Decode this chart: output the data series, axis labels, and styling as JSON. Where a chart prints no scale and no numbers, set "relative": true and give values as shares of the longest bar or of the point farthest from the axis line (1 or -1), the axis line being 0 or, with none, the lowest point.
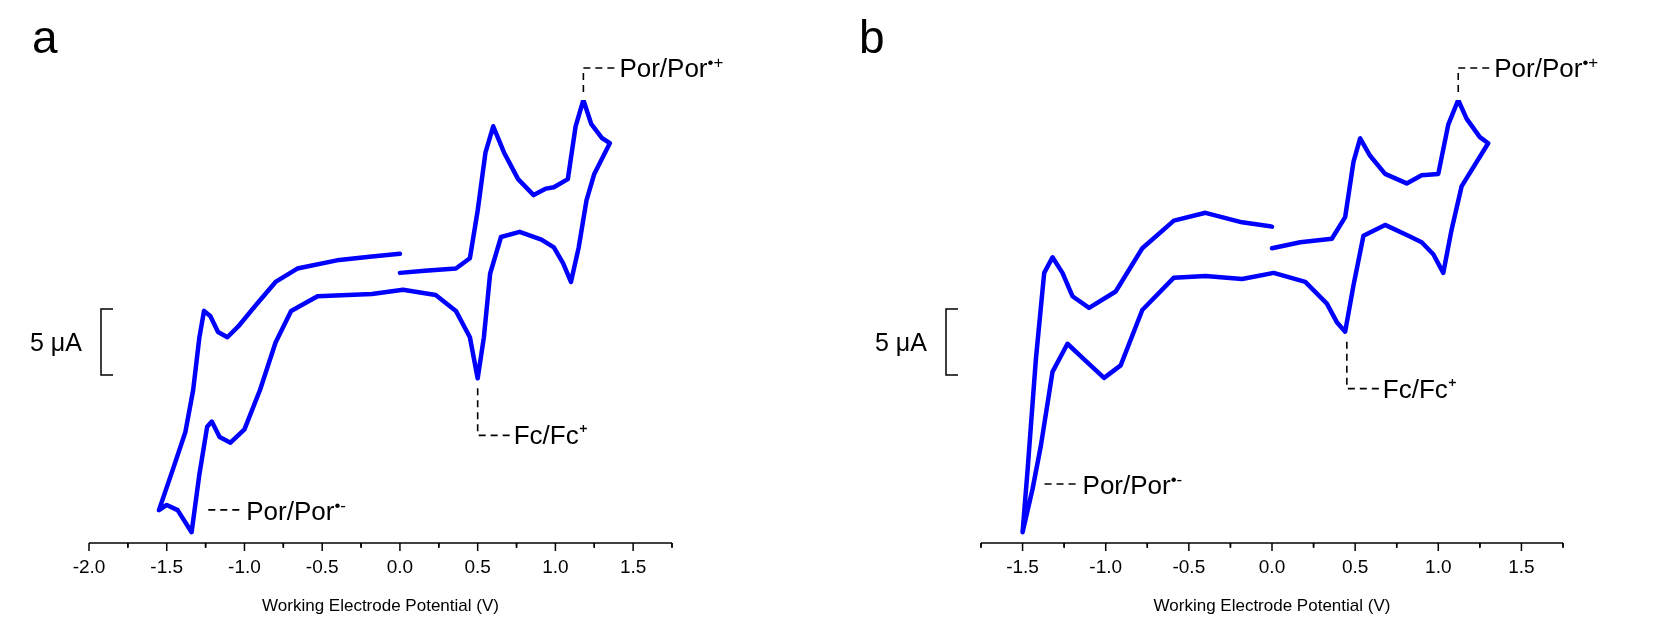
{
  "chart_data": [
    {
      "type": "line",
      "title": "a",
      "xlabel": "Working Electrode Potential (V)",
      "relative": true,
      "xlim": [
        -2.0,
        1.75
      ],
      "xticks": [
        {
          "value": -2,
          "label": "-2.0"
        },
        {
          "value": -1.75,
          "label": null
        },
        {
          "value": -1.5,
          "label": "-1.5"
        },
        {
          "value": -1.25,
          "label": null
        },
        {
          "value": -1,
          "label": "-1.0"
        },
        {
          "value": -0.75,
          "label": null
        },
        {
          "value": -0.5,
          "label": "-0.5"
        },
        {
          "value": -0.25,
          "label": null
        },
        {
          "value": 0,
          "label": "0.0"
        },
        {
          "value": 0.25,
          "label": null
        },
        {
          "value": 0.5,
          "label": "0.5"
        },
        {
          "value": 0.75,
          "label": null
        },
        {
          "value": 1,
          "label": "1.0"
        },
        {
          "value": 1.25,
          "label": null
        },
        {
          "value": 1.5,
          "label": "1.5"
        },
        {
          "value": 1.75,
          "label": null
        }
      ],
      "series": [
        {
          "color": "#0000ff",
          "x": [
            0.0,
            -0.18,
            -0.39,
            -0.66,
            -0.8,
            -0.93,
            -1.04,
            -1.11,
            -1.17,
            -1.22,
            -1.26,
            -1.29,
            -1.33,
            -1.38,
            -1.46,
            -1.55,
            -1.5,
            -1.43,
            -1.34,
            -1.29,
            -1.24,
            -1.21,
            -1.16,
            -1.09,
            -1.0,
            -0.9,
            -0.8,
            -0.7,
            -0.53,
            -0.18,
            0.02,
            0.23,
            0.36,
            0.45,
            0.5,
            0.54,
            0.58,
            0.65,
            0.77,
            0.91,
            0.99,
            1.05,
            1.1,
            1.15,
            1.2,
            1.25,
            1.35,
            1.3,
            1.23,
            1.18,
            1.13,
            1.08,
            0.99,
            0.94,
            0.86,
            0.76,
            0.67,
            0.6,
            0.55,
            0.5,
            0.45,
            0.36,
            0.16,
            0.0
          ],
          "values": [
            0.644,
            0.638,
            0.63,
            0.61,
            0.579,
            0.524,
            0.476,
            0.451,
            0.463,
            0.5,
            0.512,
            0.451,
            0.329,
            0.232,
            0.146,
            0.051,
            0.063,
            0.051,
            0.0,
            0.134,
            0.244,
            0.256,
            0.22,
            0.207,
            0.238,
            0.329,
            0.439,
            0.512,
            0.546,
            0.551,
            0.561,
            0.549,
            0.512,
            0.451,
            0.356,
            0.451,
            0.598,
            0.683,
            0.695,
            0.677,
            0.659,
            0.622,
            0.579,
            0.659,
            0.768,
            0.829,
            0.9,
            0.912,
            0.945,
            1.0,
            0.939,
            0.817,
            0.798,
            0.795,
            0.78,
            0.817,
            0.878,
            0.939,
            0.878,
            0.744,
            0.634,
            0.61,
            0.605,
            0.6
          ]
        }
      ],
      "annotations": [
        "5 μA",
        {
          "text": "Por/Por$^{•+}$",
          "x": 1.18,
          "y": 1.0
        },
        {
          "text": "Fc/Fc⁺",
          "x": 0.5,
          "y": 0.356
        },
        {
          "text": "Por/Por$^{•-}$",
          "x": -1.31,
          "y": 0.04
        }
      ]
    },
    {
      "type": "line",
      "title": "b",
      "xlabel": "Working Electrode Potential (V)",
      "relative": true,
      "xlim": [
        -1.75,
        1.75
      ],
      "xticks": [
        {
          "value": -1.75,
          "label": null
        },
        {
          "value": -1.5,
          "label": "-1.5"
        },
        {
          "value": -1.25,
          "label": null
        },
        {
          "value": -1,
          "label": "-1.0"
        },
        {
          "value": -0.75,
          "label": null
        },
        {
          "value": -0.5,
          "label": "-0.5"
        },
        {
          "value": -0.25,
          "label": null
        },
        {
          "value": 0,
          "label": "0.0"
        },
        {
          "value": 0.25,
          "label": null
        },
        {
          "value": 0.5,
          "label": "0.5"
        },
        {
          "value": 0.75,
          "label": null
        },
        {
          "value": 1,
          "label": "1.0"
        },
        {
          "value": 1.25,
          "label": null
        },
        {
          "value": 1.5,
          "label": "1.5"
        },
        {
          "value": 1.75,
          "label": null
        }
      ],
      "series": [
        {
          "color": "#0000ff",
          "x": [
            0.0,
            -0.18,
            -0.4,
            -0.59,
            -0.78,
            -0.94,
            -1.1,
            -1.2,
            -1.26,
            -1.32,
            -1.37,
            -1.42,
            -1.47,
            -1.5,
            -1.44,
            -1.39,
            -1.32,
            -1.23,
            -1.13,
            -1.01,
            -0.91,
            -0.78,
            -0.59,
            -0.4,
            -0.18,
            0.01,
            0.2,
            0.33,
            0.39,
            0.44,
            0.49,
            0.55,
            0.68,
            0.82,
            0.9,
            0.97,
            1.03,
            1.08,
            1.14,
            1.3,
            1.25,
            1.17,
            1.12,
            1.06,
            1.0,
            0.9,
            0.81,
            0.68,
            0.59,
            0.53,
            0.49,
            0.44,
            0.36,
            0.17,
            0.0
          ],
          "values": [
            0.707,
            0.717,
            0.739,
            0.721,
            0.657,
            0.557,
            0.519,
            0.546,
            0.6,
            0.636,
            0.6,
            0.4,
            0.143,
            0.0,
            0.1,
            0.2,
            0.371,
            0.436,
            0.4,
            0.357,
            0.386,
            0.514,
            0.589,
            0.593,
            0.586,
            0.6,
            0.579,
            0.529,
            0.486,
            0.464,
            0.571,
            0.686,
            0.711,
            0.686,
            0.671,
            0.643,
            0.6,
            0.7,
            0.8,
            0.9,
            0.914,
            0.957,
            1.0,
            0.943,
            0.829,
            0.826,
            0.807,
            0.829,
            0.871,
            0.911,
            0.857,
            0.729,
            0.679,
            0.671,
            0.657
          ]
        }
      ],
      "annotations": [
        "5 μA",
        {
          "text": "Por/Por$^{•+}$",
          "x": 1.12,
          "y": 1.0
        },
        {
          "text": "Fc/Fc⁺",
          "x": 0.45,
          "y": 0.464
        },
        {
          "text": "Por/Por$^{•-}$",
          "x": -1.44,
          "y": 0.1
        }
      ]
    }
  ]
}
